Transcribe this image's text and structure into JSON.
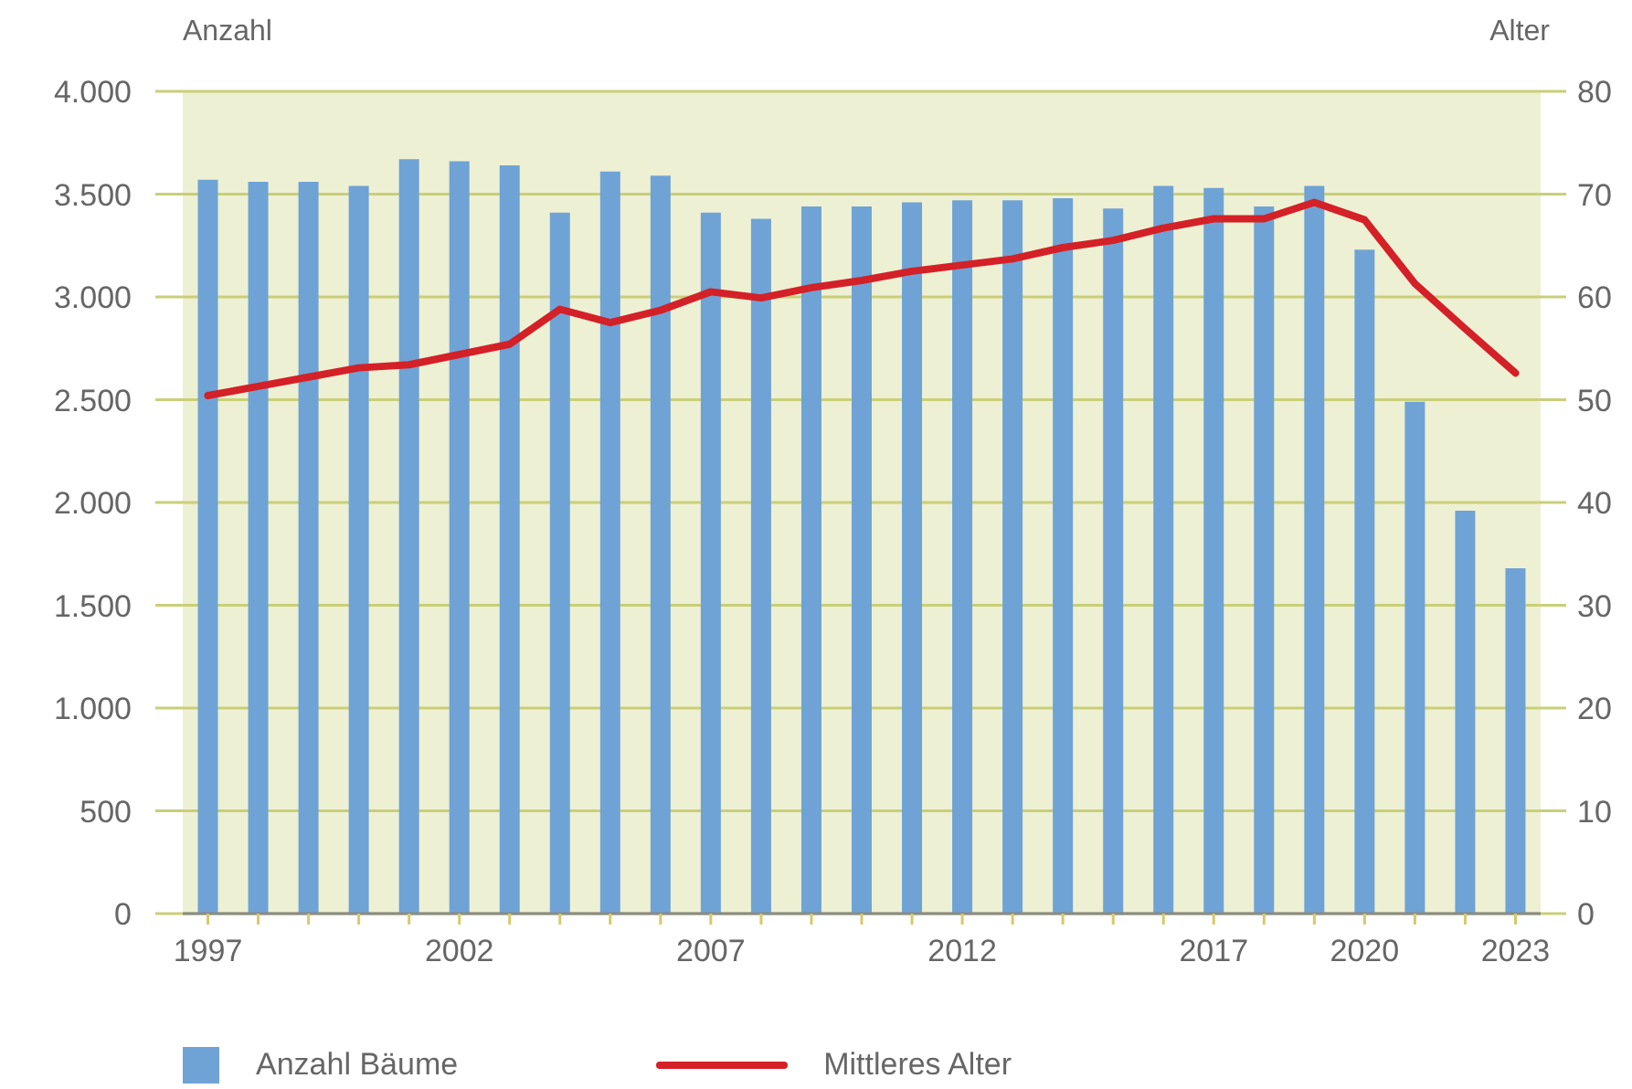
{
  "chart_data": {
    "type": "bar",
    "categories": [
      "1997",
      null,
      null,
      null,
      null,
      "2002",
      null,
      null,
      null,
      null,
      "2007",
      null,
      null,
      null,
      null,
      "2012",
      null,
      null,
      null,
      null,
      "2017",
      null,
      null,
      "2020",
      null,
      null,
      "2023"
    ],
    "series": [
      {
        "name": "Anzahl Bäume",
        "color": "#6fa3d6",
        "values": [
          3570,
          3560,
          3560,
          3540,
          3670,
          3660,
          3640,
          3410,
          3610,
          3590,
          3410,
          3380,
          3440,
          3440,
          3460,
          3470,
          3470,
          3480,
          3430,
          3540,
          3530,
          3440,
          3540,
          3230,
          2490,
          1960,
          1680
        ]
      },
      {
        "name": "Mittleres Alter",
        "type": "line",
        "axis": "y2",
        "color": "#d42027",
        "values": [
          50.4,
          51.3,
          52.2,
          53.1,
          53.4,
          54.4,
          55.4,
          58.8,
          57.5,
          58.7,
          60.5,
          59.9,
          60.9,
          61.6,
          62.5,
          63.1,
          63.7,
          64.8,
          65.5,
          66.7,
          67.6,
          67.6,
          69.2,
          67.5,
          61.3,
          56.9,
          52.6
        ]
      }
    ],
    "ylabel": "Anzahl",
    "y2label": "Alter",
    "ylim": [
      0,
      4000
    ],
    "yticks": [
      0,
      500,
      {
        "value": 1000,
        "label": "1.000"
      },
      {
        "value": 1500,
        "label": "1.500"
      },
      {
        "value": 2000,
        "label": "2.000"
      },
      {
        "value": 2500,
        "label": "2.500"
      },
      {
        "value": 3000,
        "label": "3.000"
      },
      {
        "value": 3500,
        "label": "3.500"
      },
      {
        "value": 4000,
        "label": "4.000"
      }
    ],
    "y2lim": [
      0,
      80
    ],
    "y2ticks": [
      0,
      10,
      20,
      30,
      40,
      50,
      60,
      70,
      80
    ],
    "grid": "y",
    "legend": "bottom"
  }
}
